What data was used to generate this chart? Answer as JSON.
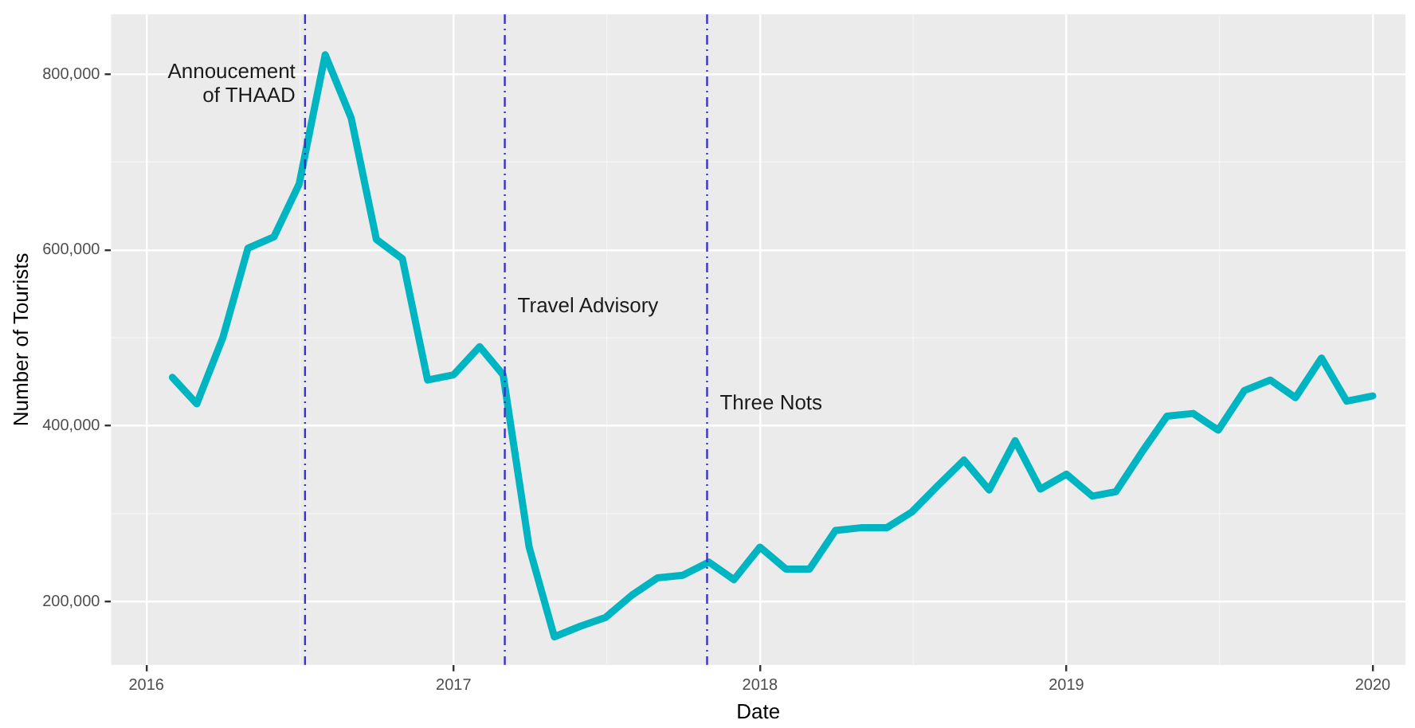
{
  "chart_data": {
    "type": "line",
    "xlabel": "Date",
    "ylabel": "Number of Tourists",
    "x": [
      "2016-02",
      "2016-03",
      "2016-04",
      "2016-05",
      "2016-06",
      "2016-07",
      "2016-08",
      "2016-09",
      "2016-10",
      "2016-11",
      "2016-12",
      "2017-01",
      "2017-02",
      "2017-03",
      "2017-04",
      "2017-05",
      "2017-06",
      "2017-07",
      "2017-08",
      "2017-09",
      "2017-10",
      "2017-11",
      "2017-12",
      "2018-01",
      "2018-02",
      "2018-03",
      "2018-04",
      "2018-05",
      "2018-06",
      "2018-07",
      "2018-08",
      "2018-09",
      "2018-10",
      "2018-11",
      "2018-12",
      "2019-01",
      "2019-02",
      "2019-03",
      "2019-04",
      "2019-05",
      "2019-06",
      "2019-07",
      "2019-08",
      "2019-09",
      "2019-10",
      "2019-11",
      "2019-12",
      "2020-01"
    ],
    "series": [
      {
        "color": "#00b5c2",
        "values": [
          455000,
          425000,
          500000,
          602000,
          615000,
          675000,
          822000,
          750000,
          612000,
          590000,
          452000,
          458000,
          490000,
          458000,
          262000,
          160000,
          172000,
          182000,
          207000,
          227000,
          230000,
          245000,
          225000,
          262000,
          237000,
          237000,
          281000,
          284000,
          284000,
          302000,
          332000,
          361000,
          327000,
          383000,
          328000,
          345000,
          320000,
          325000,
          370000,
          411000,
          414000,
          395000,
          440000,
          452000,
          432000,
          477000,
          428000,
          434000
        ]
      }
    ],
    "xlim": [
      "2015-11-20",
      "2020-02-09"
    ],
    "xticks": [
      {
        "value": "2016",
        "label": "2016"
      },
      {
        "value": "2017",
        "label": "2017"
      },
      {
        "value": "2018",
        "label": "2018"
      },
      {
        "value": "2019",
        "label": "2019"
      },
      {
        "value": "2020",
        "label": "2020"
      }
    ],
    "ylim": [
      128000,
      868000
    ],
    "yticks": [
      {
        "value": 200000,
        "label": "200,000"
      },
      {
        "value": 400000,
        "label": "400,000"
      },
      {
        "value": 600000,
        "label": "600,000"
      },
      {
        "value": 800000,
        "label": "800,000"
      }
    ],
    "ref_lines": [
      {
        "axis": "x",
        "value": "2016-07-08",
        "label": "Annoucement\nof THAAD",
        "color": "#3b32c8",
        "line_style": "dashed"
      },
      {
        "axis": "x",
        "value": "2017-03-03",
        "label": "Travel Advisory",
        "color": "#3b32c8",
        "line_style": "dashed"
      },
      {
        "axis": "x",
        "value": "2017-10-30",
        "label": "Three Nots",
        "color": "#3b32c8",
        "line_style": "dashed"
      }
    ],
    "grid": true,
    "legend": false,
    "marker": "none",
    "line_style": "solid"
  }
}
